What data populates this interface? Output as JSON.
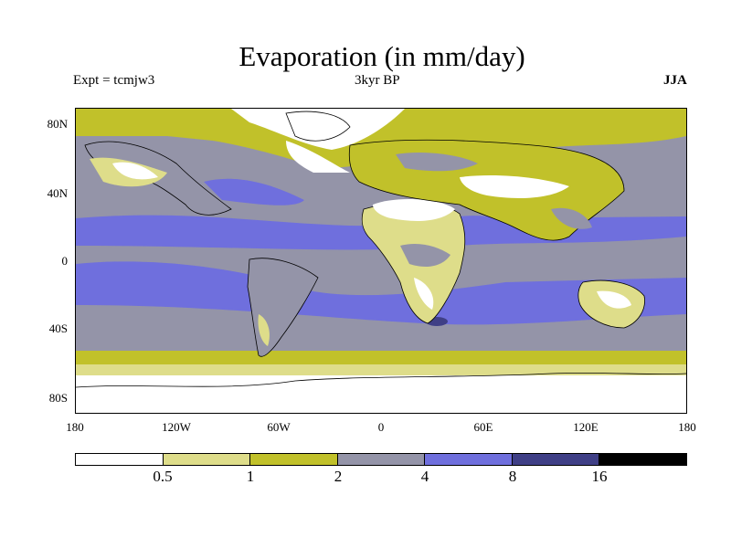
{
  "title": "Evaporation (in mm/day)",
  "subtitle_left": "Expt = tcmjw3",
  "subtitle_center": "3kyr BP",
  "subtitle_right": "JJA",
  "y_ticks": [
    "80N",
    "40N",
    "0",
    "40S",
    "80S"
  ],
  "x_ticks": [
    "180",
    "120W",
    "60W",
    "0",
    "60E",
    "120E",
    "180"
  ],
  "colorbar": {
    "labels": [
      "0.5",
      "1",
      "2",
      "4",
      "8",
      "16"
    ],
    "colors": [
      "#ffffff",
      "#dedd8a",
      "#c1c12a",
      "#9494a8",
      "#6f6fdd",
      "#3f3f86",
      "#000000"
    ]
  }
}
